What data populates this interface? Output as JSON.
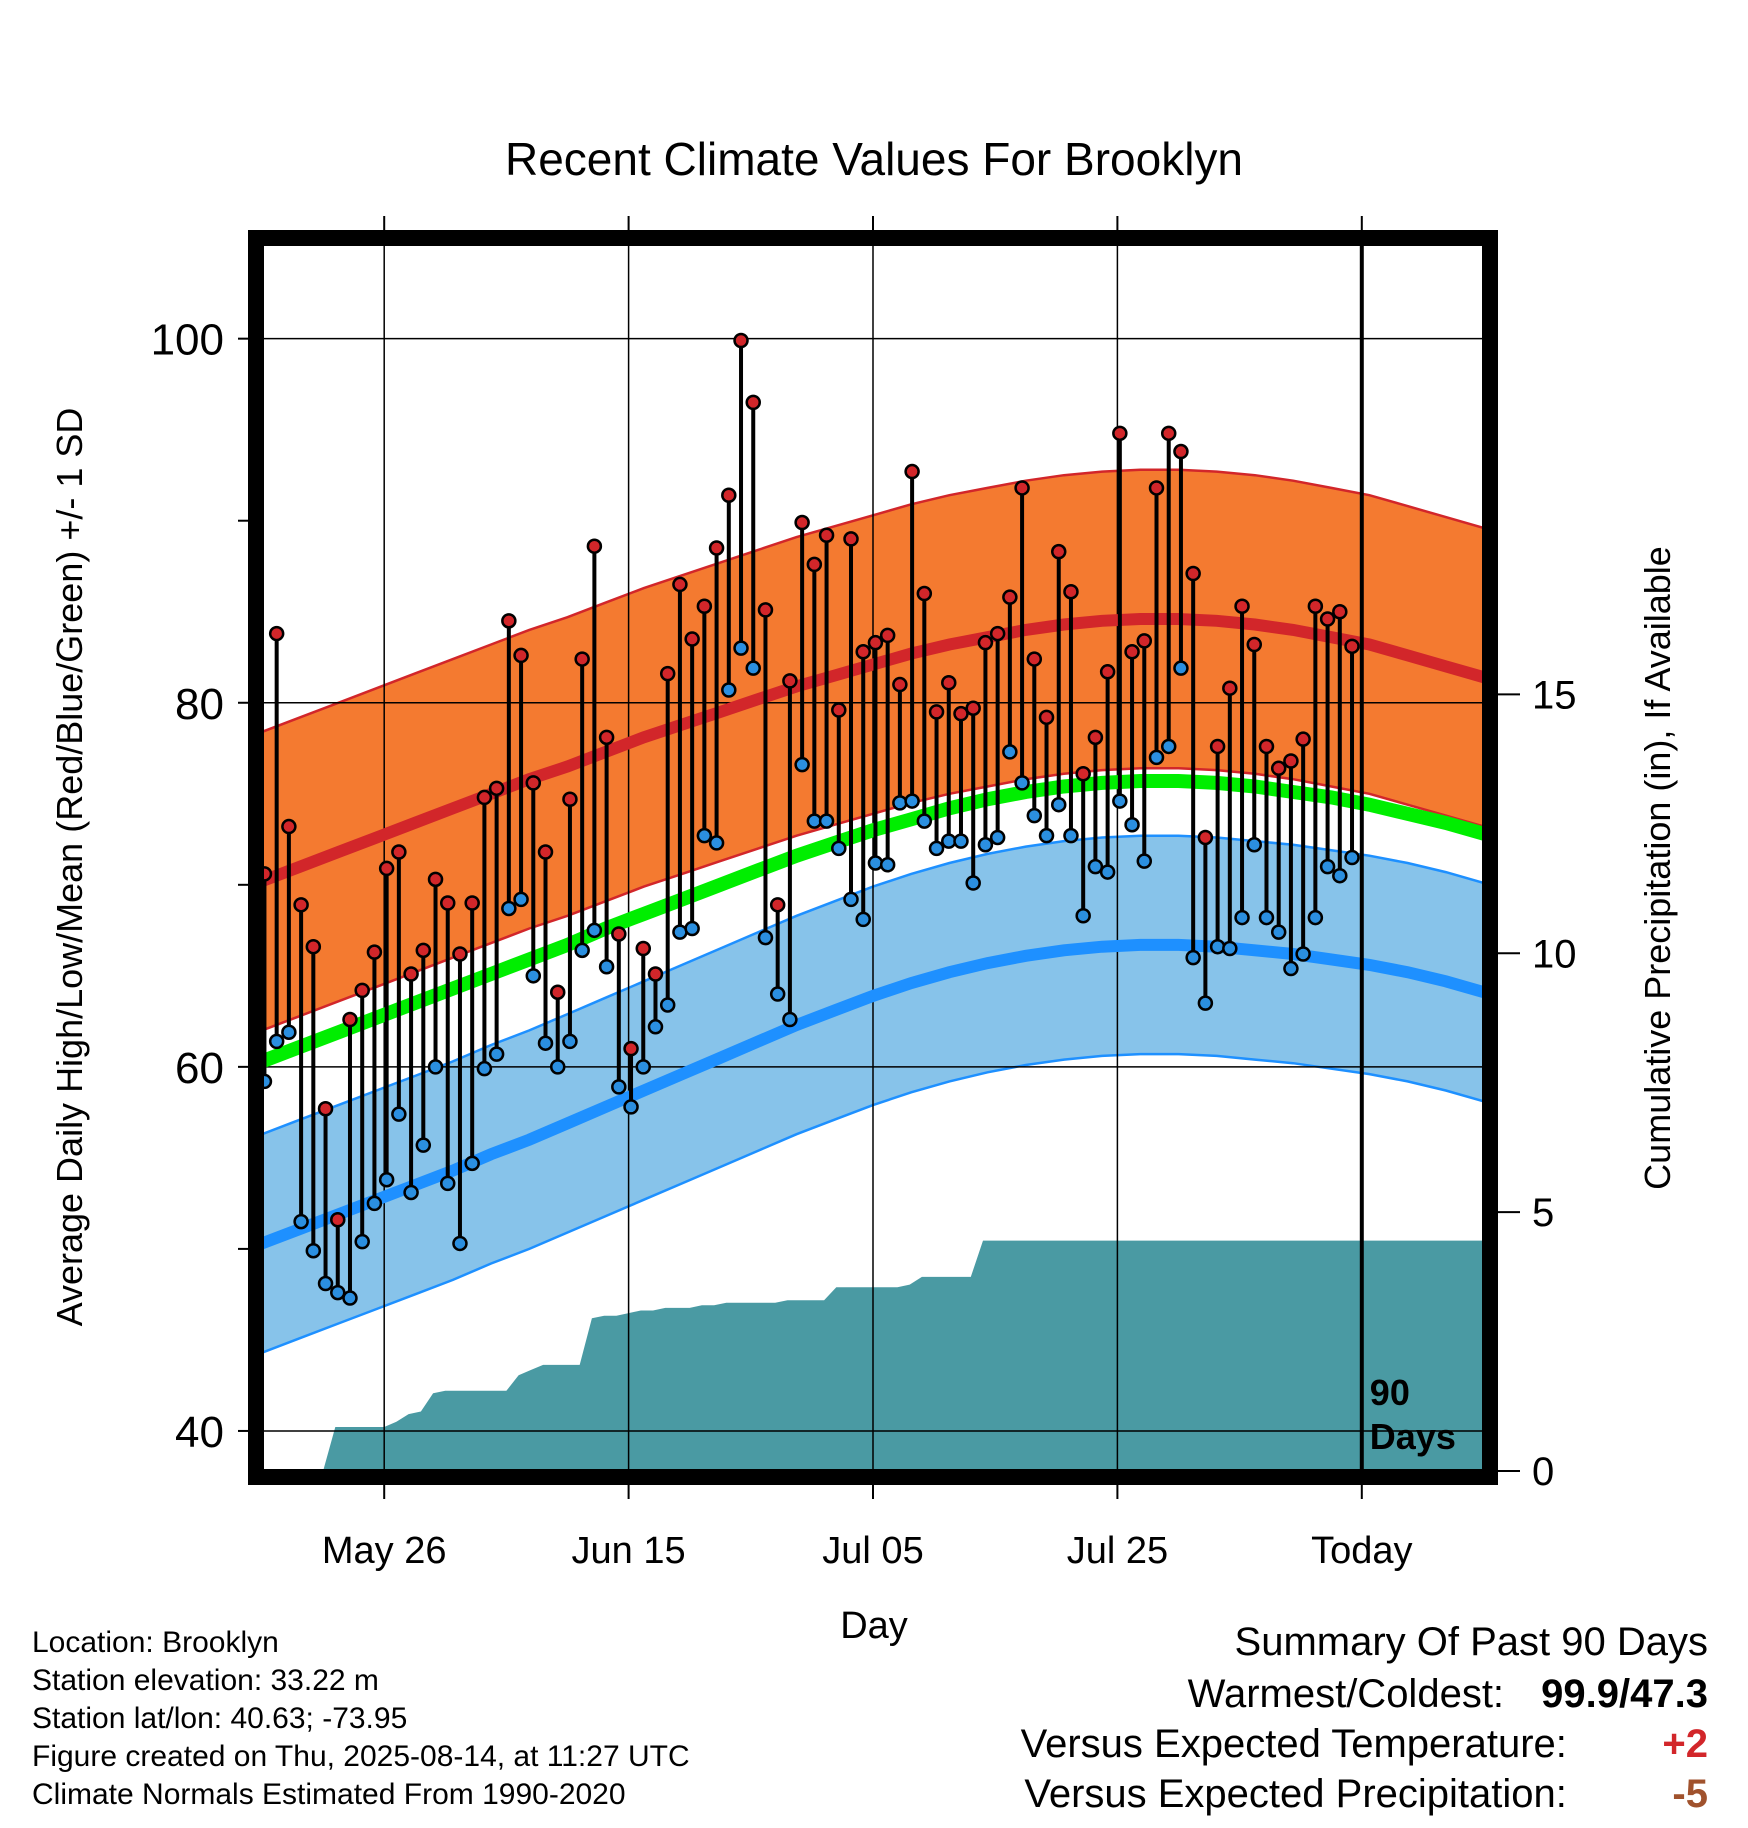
{
  "chart_data": {
    "type": "line",
    "title": "Recent Climate Values For Brooklyn",
    "xlabel": "Day",
    "ylabel": "Average Daily High/Low/Mean (Red/Blue/Green) +/- 1 SD",
    "y2label": "Cumulative Precipitation (in), If Available",
    "ylim": [
      37.8,
      105.2
    ],
    "y2lim": [
      0,
      23.7
    ],
    "xlim": [
      0,
      100
    ],
    "y_ticks": [
      "40",
      "60",
      "80",
      "100"
    ],
    "y_tick_values": [
      40,
      60,
      80,
      100
    ],
    "y_minor_ticks": [
      50,
      70,
      90
    ],
    "y2_ticks": [
      "0",
      "5",
      "10",
      "15"
    ],
    "y2_tick_values": [
      0,
      5,
      10,
      15
    ],
    "x_ticks": [
      "May 26",
      "Jun 15",
      "Jul 05",
      "Jul 25",
      "Today"
    ],
    "x_tick_values": [
      10,
      30,
      50,
      70,
      90
    ],
    "window_label": [
      "90",
      "Days"
    ],
    "grid": true,
    "daily_high": [
      70.6,
      83.8,
      73.2,
      68.9,
      66.6,
      57.7,
      51.6,
      62.6,
      64.2,
      66.3,
      70.9,
      71.8,
      65.1,
      66.4,
      70.3,
      69.0,
      66.2,
      69.0,
      74.8,
      75.3,
      84.5,
      82.6,
      75.6,
      71.8,
      64.1,
      74.7,
      82.4,
      88.6,
      78.1,
      67.3,
      61.0,
      66.5,
      65.1,
      81.6,
      86.5,
      83.5,
      85.3,
      88.5,
      91.4,
      99.9,
      96.5,
      85.1,
      68.9,
      81.2,
      89.9,
      87.6,
      89.2,
      79.6,
      89.0,
      82.8,
      83.3,
      83.7,
      81.0,
      92.7,
      86.0,
      79.5,
      81.1,
      79.4,
      79.7,
      83.3,
      83.8,
      85.8,
      91.8,
      82.4,
      79.2,
      88.3,
      86.1,
      76.1,
      78.1,
      81.7,
      94.8,
      82.8,
      83.4,
      91.8,
      94.8,
      93.8,
      87.1,
      72.6,
      77.6,
      80.8,
      85.3,
      83.2,
      77.6,
      76.4,
      76.8,
      78.0,
      85.3,
      84.6,
      85.0,
      83.1
    ],
    "daily_low": [
      59.2,
      61.4,
      61.9,
      51.5,
      49.9,
      48.1,
      47.6,
      47.3,
      50.4,
      52.5,
      53.8,
      57.4,
      53.1,
      55.7,
      60.0,
      53.6,
      50.3,
      54.7,
      59.9,
      60.7,
      68.7,
      69.2,
      65.0,
      61.3,
      60.0,
      61.4,
      66.4,
      67.5,
      65.5,
      58.9,
      57.8,
      60.0,
      62.2,
      63.4,
      67.4,
      67.6,
      72.7,
      72.3,
      80.7,
      83.0,
      81.9,
      67.1,
      64.0,
      62.6,
      76.6,
      73.5,
      73.5,
      72.0,
      69.2,
      68.1,
      71.2,
      71.1,
      74.5,
      74.6,
      73.5,
      72.0,
      72.4,
      72.4,
      70.1,
      72.2,
      72.6,
      77.3,
      75.6,
      73.8,
      72.7,
      74.4,
      72.7,
      68.3,
      71.0,
      70.7,
      74.6,
      73.3,
      71.3,
      77.0,
      77.6,
      81.9,
      66.0,
      63.5,
      66.6,
      66.5,
      68.2,
      72.2,
      68.2,
      67.4,
      65.4,
      66.2,
      68.2,
      71.0,
      70.5,
      71.5
    ],
    "normal_high": [
      70.2,
      71.0,
      71.8,
      72.6,
      73.4,
      74.2,
      75.0,
      75.8,
      76.5,
      77.3,
      78.1,
      78.8,
      79.5,
      80.2,
      80.9,
      81.5,
      82.1,
      82.7,
      83.2,
      83.6,
      84.0,
      84.3,
      84.5,
      84.6,
      84.6,
      84.5,
      84.3,
      84.0,
      83.6,
      83.2,
      82.6,
      82.0,
      81.4
    ],
    "normal_low": [
      50.3,
      51.1,
      51.9,
      52.7,
      53.5,
      54.3,
      55.2,
      56.0,
      56.9,
      57.8,
      58.7,
      59.6,
      60.5,
      61.4,
      62.3,
      63.1,
      63.9,
      64.6,
      65.2,
      65.7,
      66.1,
      66.4,
      66.6,
      66.7,
      66.7,
      66.6,
      66.4,
      66.2,
      65.9,
      65.6,
      65.2,
      64.7,
      64.1
    ],
    "normal_mean": [
      60.3,
      61.1,
      61.9,
      62.7,
      63.5,
      64.3,
      65.1,
      65.9,
      66.7,
      67.6,
      68.4,
      69.2,
      70.0,
      70.8,
      71.6,
      72.3,
      73.0,
      73.6,
      74.2,
      74.7,
      75.1,
      75.4,
      75.6,
      75.7,
      75.7,
      75.6,
      75.4,
      75.1,
      74.8,
      74.4,
      73.9,
      73.4,
      72.8
    ],
    "sd_high": 8.2,
    "sd_low": 6.0,
    "precip_cumulative_x": [
      0,
      5,
      6,
      10,
      11,
      12,
      13,
      14,
      15,
      16,
      17,
      20,
      21,
      22,
      23,
      24,
      25,
      26,
      27,
      28,
      29,
      30,
      31,
      32,
      33,
      34,
      35,
      36,
      37,
      38,
      39,
      40,
      41,
      42,
      43,
      44,
      45,
      46,
      47,
      48,
      49,
      50,
      51,
      52,
      53,
      54,
      55,
      56,
      57,
      58,
      59,
      60,
      61,
      62,
      63,
      64,
      65,
      66,
      67,
      68,
      69,
      70,
      71,
      72,
      73,
      74,
      75,
      76,
      77,
      78,
      79,
      80,
      81,
      82,
      83,
      84,
      85,
      86,
      87,
      88,
      89,
      90,
      91,
      92,
      93,
      94,
      95,
      96,
      97,
      98,
      99,
      100
    ],
    "precip_cumulative": [
      0,
      0,
      0.85,
      0.85,
      0.95,
      1.1,
      1.15,
      1.5,
      1.55,
      1.55,
      1.55,
      1.55,
      1.85,
      1.95,
      2.05,
      2.05,
      2.05,
      2.05,
      2.95,
      3.0,
      3.0,
      3.05,
      3.1,
      3.1,
      3.15,
      3.15,
      3.15,
      3.2,
      3.2,
      3.25,
      3.25,
      3.25,
      3.25,
      3.25,
      3.3,
      3.3,
      3.3,
      3.3,
      3.55,
      3.55,
      3.55,
      3.55,
      3.55,
      3.55,
      3.6,
      3.75,
      3.75,
      3.75,
      3.75,
      3.75,
      4.45,
      4.45,
      4.45,
      4.45,
      4.45,
      4.45,
      4.45,
      4.45,
      4.45,
      4.45,
      4.45,
      4.45,
      4.45,
      4.45,
      4.45,
      4.45,
      4.45,
      4.45,
      4.45,
      4.45,
      4.45,
      4.45,
      4.45,
      4.45,
      4.45,
      4.45,
      4.45,
      4.45,
      4.45,
      4.45,
      4.45,
      4.45,
      4.45,
      4.45,
      4.45,
      4.45,
      4.45,
      4.45,
      4.45,
      4.45,
      4.45,
      4.45
    ],
    "colors": {
      "high": "#d2262a",
      "low": "#1e90ff",
      "mean": "#00ee00",
      "high_band": "#f47a30",
      "low_band": "#87c3ea",
      "precip": "#4a9aa3",
      "marker_high": "#d2262a",
      "marker_low": "#2b8fe0"
    }
  },
  "footer": {
    "location": "Location: Brooklyn",
    "elevation": "Station elevation: 33.22 m",
    "latlon": "Station lat/lon: 40.63; -73.95",
    "created": "Figure created on Thu, 2025-08-14, at 11:27 UTC",
    "normals": "Climate Normals Estimated From 1990-2020"
  },
  "summary": {
    "title": "Summary Of Past 90 Days",
    "warmest_coldest_label": "Warmest/Coldest:",
    "warmest_coldest_value": "99.9/47.3",
    "temp_label": "Versus Expected Temperature:",
    "temp_value": "+2",
    "temp_color": "#d2262a",
    "precip_label": "Versus Expected Precipitation:",
    "precip_value": "-5",
    "precip_color": "#a0522d"
  }
}
